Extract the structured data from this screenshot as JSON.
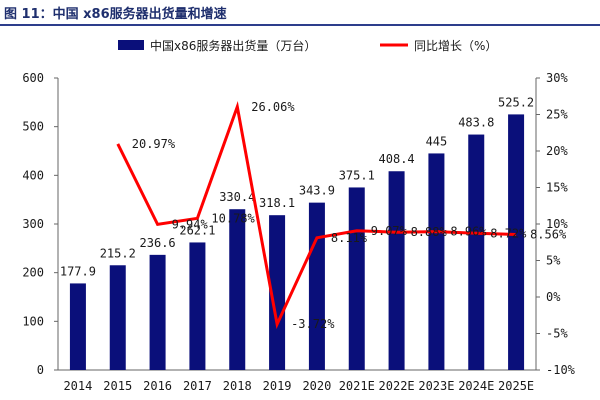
{
  "figure": {
    "title": "图 11：中国 x86服务器出货量和增速",
    "bar_color": "#0a0f7a",
    "line_color": "#ff0000",
    "title_color": "#1f2f6e"
  },
  "chart_data": {
    "type": "bar",
    "categories": [
      "2014",
      "2015",
      "2016",
      "2017",
      "2018",
      "2019",
      "2020",
      "2021E",
      "2022E",
      "2023E",
      "2024E",
      "2025E"
    ],
    "series": [
      {
        "name": "中国x86服务器出货量（万台）",
        "type": "bar",
        "axis": "left",
        "values": [
          177.9,
          215.2,
          236.6,
          262.1,
          330.4,
          318.1,
          343.9,
          375.1,
          408.4,
          445,
          483.8,
          525.2
        ],
        "labels": [
          "177.9",
          "215.2",
          "236.6",
          "262.1",
          "330.4",
          "318.1",
          "343.9",
          "375.1",
          "408.4",
          "445",
          "483.8",
          "525.2"
        ]
      },
      {
        "name": "同比增长（%）",
        "type": "line",
        "axis": "right",
        "values": [
          null,
          20.97,
          9.94,
          10.78,
          26.06,
          -3.72,
          8.11,
          9.07,
          8.88,
          8.96,
          8.72,
          8.56
        ],
        "labels": [
          "",
          "20.97%",
          "9.94%",
          "10.78%",
          "26.06%",
          "-3.72%",
          "8.11%",
          "9.07%",
          "8.88%",
          "8.96%",
          "8.72%",
          "8.56%"
        ]
      }
    ],
    "y_left": {
      "min": 0,
      "max": 600,
      "ticks": [
        "0",
        "100",
        "200",
        "300",
        "400",
        "500",
        "600"
      ]
    },
    "y_right": {
      "min": -10,
      "max": 30,
      "ticks": [
        "-10%",
        "-5%",
        "0%",
        "5%",
        "10%",
        "15%",
        "20%",
        "25%",
        "30%"
      ]
    },
    "grid": false,
    "legend_position": "top-center"
  }
}
